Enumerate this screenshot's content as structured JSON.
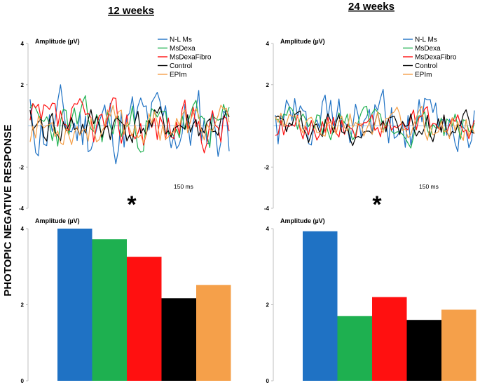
{
  "figure_label": "PHOTOPIC NEGATIVE RESPONSE",
  "colors": {
    "N-L Ms": "#1f72c4",
    "MsDexa": "#1eb050",
    "MsDexaFibro": "#ff1010",
    "Control": "#000000",
    "EPIm": "#f5a04a",
    "baseline": "#9fc6e6",
    "axis": "#bfbfbf"
  },
  "chart_data": [
    {
      "type": "line",
      "panel": "12 weeks",
      "title": "12 weeks",
      "ylabel": "Amplitude (µV)",
      "ylim": [
        -4,
        4
      ],
      "yticks": [
        4,
        2,
        -2,
        -4
      ],
      "time_label": "150 ms",
      "significance": "*",
      "legend": [
        "N-L Ms",
        "MsDexa",
        "MsDexaFibro",
        "Control",
        "EPIm"
      ],
      "series": [
        {
          "name": "N-L Ms",
          "amplitude": 1.6,
          "seed": 11
        },
        {
          "name": "MsDexa",
          "amplitude": 1.0,
          "seed": 23
        },
        {
          "name": "MsDexaFibro",
          "amplitude": 1.0,
          "seed": 37
        },
        {
          "name": "Control",
          "amplitude": 0.8,
          "seed": 41
        },
        {
          "name": "EPIm",
          "amplitude": 0.8,
          "seed": 53
        }
      ]
    },
    {
      "type": "line",
      "panel": "24 weeks",
      "title": "24 weeks",
      "ylabel": "Amplitude (µV)",
      "ylim": [
        -4,
        4
      ],
      "yticks": [
        4,
        2,
        -2,
        -4
      ],
      "time_label": "150 ms",
      "significance": "*",
      "legend": [
        "N-L Ms",
        "MsDexa",
        "MsDexaFibro",
        "Control",
        "EPIm"
      ],
      "series": [
        {
          "name": "N-L Ms",
          "amplitude": 1.3,
          "seed": 61
        },
        {
          "name": "MsDexa",
          "amplitude": 0.7,
          "seed": 73
        },
        {
          "name": "MsDexaFibro",
          "amplitude": 0.6,
          "seed": 89
        },
        {
          "name": "Control",
          "amplitude": 0.7,
          "seed": 97
        },
        {
          "name": "EPIm",
          "amplitude": 0.7,
          "seed": 103
        }
      ]
    },
    {
      "type": "bar",
      "panel": "12 weeks",
      "ylabel": "Amplitude (µV)",
      "ylim": [
        0,
        4
      ],
      "yticks": [
        4,
        2,
        0
      ],
      "categories": [
        "N-L Ms",
        "MsDexa",
        "MsDexaFibro",
        "Control",
        "EPIm"
      ],
      "values": [
        4.0,
        3.72,
        3.26,
        2.17,
        2.52
      ]
    },
    {
      "type": "bar",
      "panel": "24 weeks",
      "ylabel": "Amplitude (µV)",
      "ylim": [
        0,
        4
      ],
      "yticks": [
        4,
        2,
        0
      ],
      "categories": [
        "N-L Ms",
        "MsDexa",
        "MsDexaFibro",
        "Control",
        "EPIm"
      ],
      "values": [
        3.93,
        1.7,
        2.2,
        1.6,
        1.87
      ]
    }
  ]
}
